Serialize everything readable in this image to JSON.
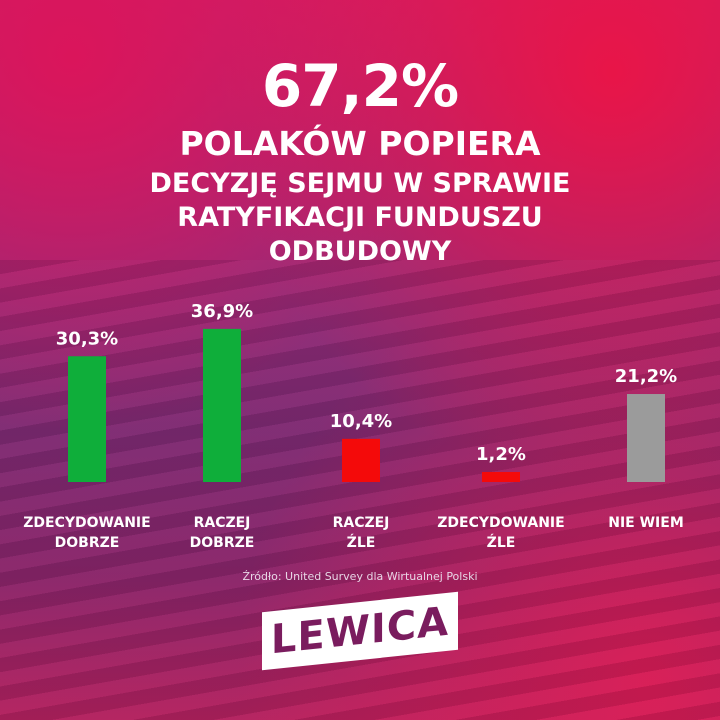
{
  "header": {
    "big": "67,2%",
    "line1": "POLAKÓW POPIERA",
    "line2": "DECYZJĘ SEJMU W SPRAWIE",
    "line3": "RATYFIKACJI FUNDUSZU",
    "line4": "ODBUDOWY"
  },
  "chart_data": {
    "type": "bar",
    "categories": [
      [
        "ZDECYDOWANIE",
        "DOBRZE"
      ],
      [
        "RACZEJ",
        "DOBRZE"
      ],
      [
        "RACZEJ",
        "ŹLE"
      ],
      [
        "ZDECYDOWANIE",
        "ŹLE"
      ],
      [
        "NIE WIEM"
      ]
    ],
    "values": [
      30.3,
      36.9,
      10.4,
      1.2,
      21.2
    ],
    "value_labels": [
      "30,3%",
      "36,9%",
      "10,4%",
      "1,2%",
      "21,2%"
    ],
    "colors": [
      "#0fae3a",
      "#0fae3a",
      "#f40a0a",
      "#f40a0a",
      "#9b9b9b"
    ],
    "grid": false
  },
  "source": "Źródło: United Survey dla Wirtualnej Polski",
  "logo": "LEWICA"
}
